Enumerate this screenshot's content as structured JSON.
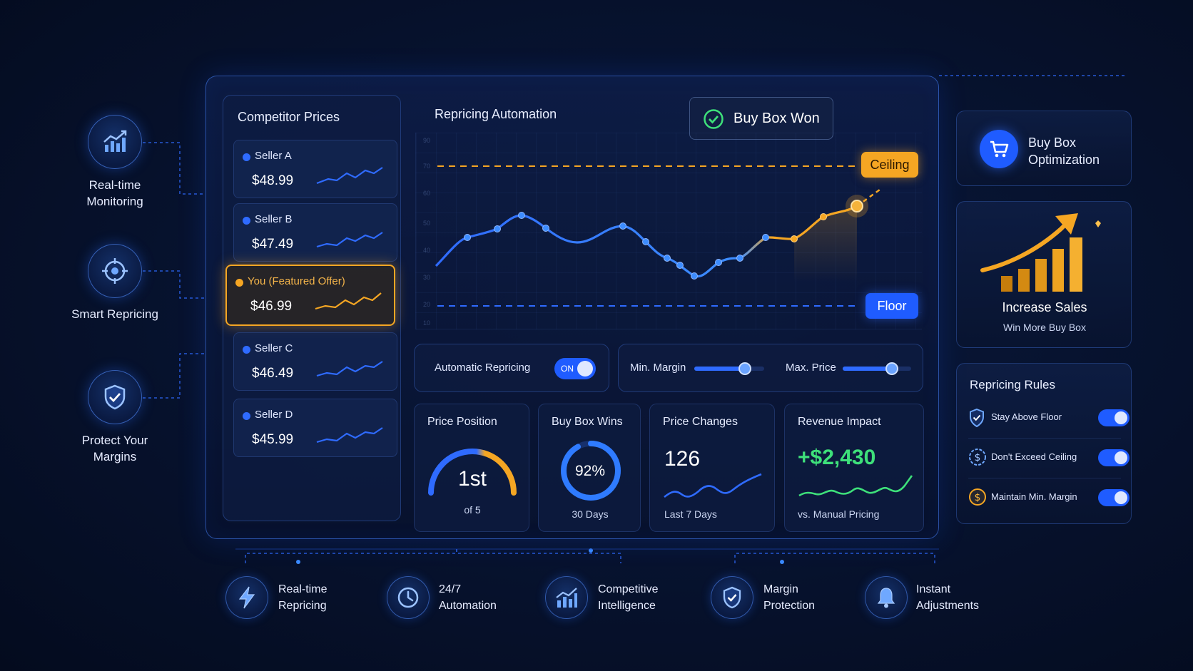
{
  "left_features": [
    {
      "label": "Real-time Monitoring",
      "icon": "bar-chart-icon"
    },
    {
      "label": "Smart Repricing",
      "icon": "target-icon"
    },
    {
      "label": "Protect Your Margins",
      "icon": "shield-check-icon"
    }
  ],
  "competitor_prices": {
    "title": "Competitor Prices",
    "sellers": [
      {
        "name": "Seller A",
        "price": "$48.99"
      },
      {
        "name": "Seller B",
        "price": "$47.49"
      },
      {
        "name": "You (Featured Offer)",
        "price": "$46.99",
        "featured": true
      },
      {
        "name": "Seller C",
        "price": "$46.49"
      },
      {
        "name": "Seller D",
        "price": "$45.99"
      }
    ]
  },
  "repricing": {
    "title": "Repricing Automation",
    "status_badge": "Buy Box Won",
    "ceiling_label": "Ceiling",
    "floor_label": "Floor",
    "y_ticks": [
      "90",
      "70",
      "60",
      "50",
      "40",
      "30",
      "20",
      "10"
    ]
  },
  "controls": {
    "auto_label": "Automatic Repricing",
    "auto_state": "ON",
    "min_margin_label": "Min. Margin",
    "min_margin_level": 0.72,
    "max_price_label": "Max. Price",
    "max_price_level": 0.72
  },
  "stats": {
    "price_position": {
      "title": "Price Position",
      "value": "1st",
      "sub": "of 5"
    },
    "buy_box_wins": {
      "title": "Buy Box Wins",
      "value": "92%",
      "sub": "30 Days",
      "fraction": 0.92
    },
    "price_changes": {
      "title": "Price Changes",
      "value": "126",
      "sub": "Last 7 Days"
    },
    "revenue_impact": {
      "title": "Revenue Impact",
      "value": "+$2,430",
      "sub": "vs. Manual Pricing"
    }
  },
  "right_panel": {
    "optimization_title": "Buy Box Optimization",
    "increase_title": "Increase Sales",
    "increase_sub": "Win More Buy Box",
    "rules_title": "Repricing Rules",
    "rules": [
      {
        "label": "Stay Above Floor",
        "icon": "shield-check-icon",
        "on": true
      },
      {
        "label": "Don't Exceed Ceiling",
        "icon": "dollar-circle-icon",
        "on": true
      },
      {
        "label": "Maintain Min. Margin",
        "icon": "dollar-coin-icon",
        "on": true
      }
    ]
  },
  "bottom_features": [
    {
      "label": "Real-time Repricing",
      "icon": "lightning-icon"
    },
    {
      "label": "24/7 Automation",
      "icon": "clock-icon"
    },
    {
      "label": "Competitive Intelligence",
      "icon": "bar-chart-icon"
    },
    {
      "label": "Margin Protection",
      "icon": "shield-check-icon"
    },
    {
      "label": "Instant Adjustments",
      "icon": "bell-icon"
    }
  ],
  "colors": {
    "accent_blue": "#2f6bff",
    "accent_orange": "#f5a623",
    "positive_green": "#3ee07a"
  }
}
